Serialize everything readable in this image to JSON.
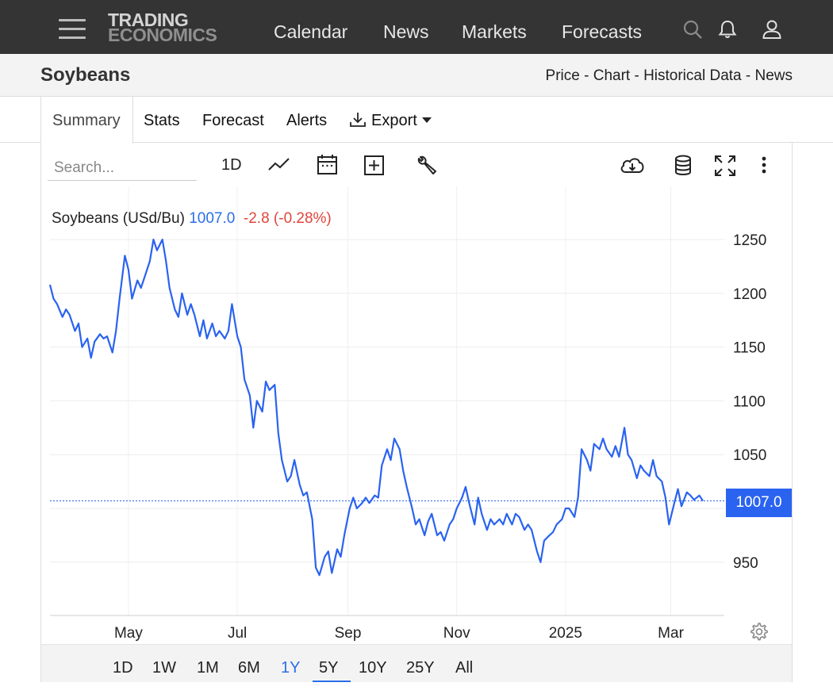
{
  "nav": {
    "logo_line1": "TRADING",
    "logo_line2": "ECONOMICS",
    "links": [
      "Calendar",
      "News",
      "Markets",
      "Forecasts"
    ]
  },
  "header": {
    "title": "Soybeans",
    "breadcrumbs": "Price - Chart - Historical Data - News"
  },
  "tabs": {
    "summary": "Summary",
    "stats": "Stats",
    "forecast": "Forecast",
    "alerts": "Alerts",
    "export": "Export"
  },
  "toolbar": {
    "search_placeholder": "Search...",
    "interval": "1D"
  },
  "legend": {
    "name": "Soybeans (USd/Bu)",
    "last": "1007.0",
    "change": "-2.8 (-0.28%)"
  },
  "price_tag": "1007.0",
  "colors": {
    "line": "#2a63f0",
    "negative": "#e0453b",
    "nav_bg": "#343434",
    "accent": "#2a6ee8"
  },
  "ranges": [
    "1D",
    "1W",
    "1M",
    "6M",
    "1Y",
    "5Y",
    "10Y",
    "25Y",
    "All"
  ],
  "active_range": "1Y",
  "chart_data": {
    "type": "line",
    "title": "Soybeans (USd/Bu)",
    "xlabel": "",
    "ylabel": "",
    "x_ticks": [
      "May",
      "Jul",
      "Sep",
      "Nov",
      "2025",
      "Mar"
    ],
    "y_ticks": [
      950,
      1000,
      1050,
      1100,
      1150,
      1200,
      1250
    ],
    "y_tick_labels": [
      "950",
      "",
      "1050",
      "1100",
      "1150",
      "1200",
      "1250"
    ],
    "ylim": [
      900,
      1300
    ],
    "xlim": [
      "2024-03-18",
      "2025-03-31"
    ],
    "grid": true,
    "current_value": 1007.0,
    "series": [
      {
        "name": "Soybeans",
        "points": [
          [
            "2024-03-18",
            1208
          ],
          [
            "2024-03-20",
            1195
          ],
          [
            "2024-03-22",
            1190
          ],
          [
            "2024-03-25",
            1178
          ],
          [
            "2024-03-27",
            1185
          ],
          [
            "2024-03-29",
            1180
          ],
          [
            "2024-04-01",
            1165
          ],
          [
            "2024-04-03",
            1172
          ],
          [
            "2024-04-05",
            1150
          ],
          [
            "2024-04-08",
            1158
          ],
          [
            "2024-04-10",
            1140
          ],
          [
            "2024-04-12",
            1155
          ],
          [
            "2024-04-15",
            1162
          ],
          [
            "2024-04-17",
            1158
          ],
          [
            "2024-04-19",
            1160
          ],
          [
            "2024-04-22",
            1145
          ],
          [
            "2024-04-24",
            1165
          ],
          [
            "2024-04-26",
            1195
          ],
          [
            "2024-04-29",
            1235
          ],
          [
            "2024-05-01",
            1222
          ],
          [
            "2024-05-03",
            1195
          ],
          [
            "2024-05-06",
            1212
          ],
          [
            "2024-05-08",
            1205
          ],
          [
            "2024-05-10",
            1215
          ],
          [
            "2024-05-13",
            1230
          ],
          [
            "2024-05-15",
            1250
          ],
          [
            "2024-05-17",
            1240
          ],
          [
            "2024-05-20",
            1250
          ],
          [
            "2024-05-22",
            1230
          ],
          [
            "2024-05-24",
            1205
          ],
          [
            "2024-05-27",
            1185
          ],
          [
            "2024-05-29",
            1178
          ],
          [
            "2024-05-31",
            1200
          ],
          [
            "2024-06-03",
            1180
          ],
          [
            "2024-06-05",
            1190
          ],
          [
            "2024-06-07",
            1180
          ],
          [
            "2024-06-10",
            1160
          ],
          [
            "2024-06-12",
            1175
          ],
          [
            "2024-06-14",
            1158
          ],
          [
            "2024-06-17",
            1172
          ],
          [
            "2024-06-19",
            1160
          ],
          [
            "2024-06-21",
            1165
          ],
          [
            "2024-06-24",
            1158
          ],
          [
            "2024-06-26",
            1165
          ],
          [
            "2024-06-28",
            1190
          ],
          [
            "2024-07-01",
            1160
          ],
          [
            "2024-07-03",
            1150
          ],
          [
            "2024-07-05",
            1120
          ],
          [
            "2024-07-08",
            1105
          ],
          [
            "2024-07-10",
            1075
          ],
          [
            "2024-07-12",
            1100
          ],
          [
            "2024-07-15",
            1090
          ],
          [
            "2024-07-17",
            1118
          ],
          [
            "2024-07-19",
            1110
          ],
          [
            "2024-07-22",
            1115
          ],
          [
            "2024-07-24",
            1070
          ],
          [
            "2024-07-26",
            1045
          ],
          [
            "2024-07-29",
            1025
          ],
          [
            "2024-07-31",
            1030
          ],
          [
            "2024-08-02",
            1045
          ],
          [
            "2024-08-05",
            1022
          ],
          [
            "2024-08-07",
            1012
          ],
          [
            "2024-08-09",
            1015
          ],
          [
            "2024-08-12",
            990
          ],
          [
            "2024-08-14",
            945
          ],
          [
            "2024-08-16",
            938
          ],
          [
            "2024-08-19",
            955
          ],
          [
            "2024-08-21",
            960
          ],
          [
            "2024-08-23",
            940
          ],
          [
            "2024-08-26",
            962
          ],
          [
            "2024-08-28",
            955
          ],
          [
            "2024-08-30",
            975
          ],
          [
            "2024-09-02",
            1000
          ],
          [
            "2024-09-04",
            1010
          ],
          [
            "2024-09-06",
            1000
          ],
          [
            "2024-09-09",
            1005
          ],
          [
            "2024-09-11",
            1010
          ],
          [
            "2024-09-13",
            1005
          ],
          [
            "2024-09-16",
            1012
          ],
          [
            "2024-09-18",
            1010
          ],
          [
            "2024-09-20",
            1040
          ],
          [
            "2024-09-23",
            1055
          ],
          [
            "2024-09-25",
            1045
          ],
          [
            "2024-09-27",
            1065
          ],
          [
            "2024-09-30",
            1055
          ],
          [
            "2024-10-02",
            1035
          ],
          [
            "2024-10-04",
            1020
          ],
          [
            "2024-10-07",
            1000
          ],
          [
            "2024-10-09",
            985
          ],
          [
            "2024-10-11",
            990
          ],
          [
            "2024-10-14",
            975
          ],
          [
            "2024-10-16",
            988
          ],
          [
            "2024-10-18",
            995
          ],
          [
            "2024-10-21",
            975
          ],
          [
            "2024-10-23",
            978
          ],
          [
            "2024-10-25",
            970
          ],
          [
            "2024-10-28",
            985
          ],
          [
            "2024-10-30",
            990
          ],
          [
            "2024-11-01",
            1000
          ],
          [
            "2024-11-04",
            1010
          ],
          [
            "2024-11-06",
            1020
          ],
          [
            "2024-11-08",
            1005
          ],
          [
            "2024-11-11",
            985
          ],
          [
            "2024-11-13",
            1010
          ],
          [
            "2024-11-15",
            995
          ],
          [
            "2024-11-18",
            980
          ],
          [
            "2024-11-20",
            990
          ],
          [
            "2024-11-22",
            985
          ],
          [
            "2024-11-25",
            990
          ],
          [
            "2024-11-27",
            985
          ],
          [
            "2024-11-29",
            995
          ],
          [
            "2024-12-02",
            985
          ],
          [
            "2024-12-04",
            995
          ],
          [
            "2024-12-06",
            992
          ],
          [
            "2024-12-09",
            980
          ],
          [
            "2024-12-11",
            985
          ],
          [
            "2024-12-13",
            980
          ],
          [
            "2024-12-16",
            960
          ],
          [
            "2024-12-18",
            950
          ],
          [
            "2024-12-20",
            970
          ],
          [
            "2024-12-23",
            975
          ],
          [
            "2024-12-25",
            978
          ],
          [
            "2024-12-27",
            985
          ],
          [
            "2024-12-30",
            990
          ],
          [
            "2025-01-01",
            1000
          ],
          [
            "2025-01-03",
            1000
          ],
          [
            "2025-01-06",
            992
          ],
          [
            "2025-01-08",
            1010
          ],
          [
            "2025-01-10",
            1055
          ],
          [
            "2025-01-13",
            1045
          ],
          [
            "2025-01-15",
            1035
          ],
          [
            "2025-01-17",
            1060
          ],
          [
            "2025-01-20",
            1055
          ],
          [
            "2025-01-22",
            1065
          ],
          [
            "2025-01-24",
            1055
          ],
          [
            "2025-01-27",
            1048
          ],
          [
            "2025-01-29",
            1058
          ],
          [
            "2025-01-31",
            1048
          ],
          [
            "2025-02-03",
            1075
          ],
          [
            "2025-02-05",
            1050
          ],
          [
            "2025-02-07",
            1045
          ],
          [
            "2025-02-10",
            1028
          ],
          [
            "2025-02-12",
            1040
          ],
          [
            "2025-02-14",
            1035
          ],
          [
            "2025-02-17",
            1030
          ],
          [
            "2025-02-19",
            1045
          ],
          [
            "2025-02-21",
            1030
          ],
          [
            "2025-02-24",
            1025
          ],
          [
            "2025-02-26",
            1010
          ],
          [
            "2025-02-28",
            985
          ],
          [
            "2025-03-03",
            1005
          ],
          [
            "2025-03-05",
            1018
          ],
          [
            "2025-03-07",
            1002
          ],
          [
            "2025-03-10",
            1015
          ],
          [
            "2025-03-12",
            1012
          ],
          [
            "2025-03-14",
            1008
          ],
          [
            "2025-03-17",
            1012
          ],
          [
            "2025-03-19",
            1007
          ]
        ]
      }
    ]
  }
}
